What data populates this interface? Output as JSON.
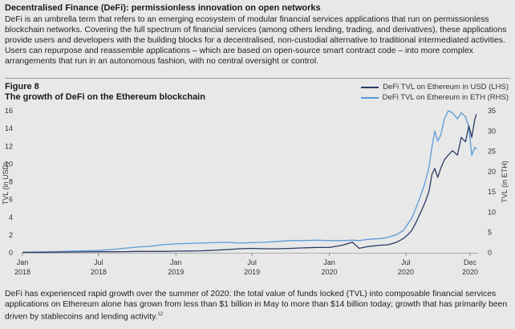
{
  "box": {
    "title": "Decentralised Finance (DeFi): permissionless innovation on open networks",
    "intro": "DeFi is an umbrella term that refers to an emerging ecosystem of modular financial services applications that run on permissionless blockchain networks. Covering the full spectrum of financial services (among others lending, trading, and derivatives), these applications provide users and developers with the building blocks for a decentralised, non-custodial alternative to traditional intermediated activities. Users can repurpose and reassemble applications – which are based on open-source smart contract code – into more complex arrangements that run in an autonomous fashion, with no central oversight or control.",
    "outro": "DeFi has experienced rapid growth over the summer of 2020: the total value of funds locked (TVL) into composable financial services applications on Ethereum alone has grown from less than $1 billion in May to more than $14 billion today; growth that has primarily been driven by stablecoins and lending activity.",
    "footnote": "12"
  },
  "figure": {
    "label": "Figure 8",
    "title": "The growth of DeFi on the Ethereum blockchain"
  },
  "chart_data": {
    "type": "line",
    "ylabel_left": "TVL (in USD)",
    "ylabel_right": "TVL (in ETH)",
    "ylim_left": [
      0,
      16
    ],
    "ylim_right": [
      0,
      35
    ],
    "yticks_left": [
      0,
      2,
      4,
      6,
      8,
      10,
      12,
      14,
      16
    ],
    "yticks_right": [
      0,
      5,
      10,
      15,
      20,
      25,
      30,
      35
    ],
    "xlim": [
      "2018-01-01",
      "2020-12-20"
    ],
    "xticks": [
      {
        "date": "2018-01-01",
        "line1": "Jan",
        "line2": "2018"
      },
      {
        "date": "2018-07-01",
        "line1": "Jul",
        "line2": "2018"
      },
      {
        "date": "2019-01-01",
        "line1": "Jan",
        "line2": "2019"
      },
      {
        "date": "2019-07-01",
        "line1": "Jul",
        "line2": "2019"
      },
      {
        "date": "2020-01-01",
        "line1": "Jan",
        "line2": "2020"
      },
      {
        "date": "2020-07-01",
        "line1": "Jul",
        "line2": "2020"
      },
      {
        "date": "2020-12-01",
        "line1": "Dec",
        "line2": "2020"
      }
    ],
    "grid": false,
    "legend_position": "top-right",
    "series": [
      {
        "name": "DeFi TVL on Ethereum in USD (LHS)",
        "axis": "left",
        "color": "#2b3a67",
        "x": [
          "2018-01-01",
          "2018-02-01",
          "2018-03-01",
          "2018-04-01",
          "2018-05-01",
          "2018-06-01",
          "2018-07-01",
          "2018-08-01",
          "2018-09-01",
          "2018-10-01",
          "2018-11-01",
          "2018-12-01",
          "2019-01-01",
          "2019-02-01",
          "2019-03-01",
          "2019-04-01",
          "2019-05-01",
          "2019-06-01",
          "2019-07-01",
          "2019-08-01",
          "2019-09-01",
          "2019-10-01",
          "2019-11-01",
          "2019-12-01",
          "2020-01-01",
          "2020-02-01",
          "2020-02-25",
          "2020-03-12",
          "2020-04-01",
          "2020-05-01",
          "2020-05-20",
          "2020-06-10",
          "2020-06-25",
          "2020-07-05",
          "2020-07-15",
          "2020-07-25",
          "2020-08-05",
          "2020-08-15",
          "2020-08-25",
          "2020-09-01",
          "2020-09-08",
          "2020-09-15",
          "2020-09-22",
          "2020-10-01",
          "2020-10-10",
          "2020-10-20",
          "2020-11-01",
          "2020-11-10",
          "2020-11-20",
          "2020-11-28",
          "2020-12-05",
          "2020-12-12",
          "2020-12-16"
        ],
        "values": [
          0.05,
          0.05,
          0.06,
          0.08,
          0.09,
          0.1,
          0.12,
          0.12,
          0.13,
          0.15,
          0.15,
          0.15,
          0.18,
          0.2,
          0.22,
          0.28,
          0.35,
          0.45,
          0.5,
          0.45,
          0.45,
          0.5,
          0.55,
          0.6,
          0.6,
          0.85,
          1.2,
          0.5,
          0.7,
          0.85,
          0.9,
          1.2,
          1.6,
          2.0,
          2.5,
          3.4,
          4.5,
          5.6,
          6.9,
          8.8,
          9.5,
          8.5,
          9.5,
          10.5,
          11.0,
          11.5,
          11.0,
          13.0,
          12.5,
          14.3,
          13.0,
          15.0,
          15.6
        ]
      },
      {
        "name": "DeFi TVL on Ethereum in ETH (RHS)",
        "axis": "right",
        "color": "#5a9bd8",
        "x": [
          "2018-01-01",
          "2018-02-01",
          "2018-03-01",
          "2018-04-01",
          "2018-05-01",
          "2018-06-01",
          "2018-07-01",
          "2018-08-01",
          "2018-09-01",
          "2018-10-01",
          "2018-11-01",
          "2018-12-01",
          "2019-01-01",
          "2019-02-01",
          "2019-03-01",
          "2019-04-01",
          "2019-05-01",
          "2019-06-01",
          "2019-07-01",
          "2019-08-01",
          "2019-09-01",
          "2019-10-01",
          "2019-11-01",
          "2019-12-01",
          "2020-01-01",
          "2020-02-01",
          "2020-02-25",
          "2020-03-12",
          "2020-04-01",
          "2020-05-01",
          "2020-05-20",
          "2020-06-10",
          "2020-06-25",
          "2020-07-05",
          "2020-07-15",
          "2020-07-25",
          "2020-08-05",
          "2020-08-15",
          "2020-08-25",
          "2020-09-01",
          "2020-09-08",
          "2020-09-15",
          "2020-09-22",
          "2020-10-01",
          "2020-10-10",
          "2020-10-20",
          "2020-11-01",
          "2020-11-10",
          "2020-11-20",
          "2020-11-28",
          "2020-12-05",
          "2020-12-12",
          "2020-12-16"
        ],
        "values": [
          0.1,
          0.15,
          0.2,
          0.3,
          0.4,
          0.5,
          0.6,
          0.8,
          1.1,
          1.4,
          1.6,
          2.0,
          2.2,
          2.3,
          2.4,
          2.5,
          2.6,
          2.4,
          2.5,
          2.6,
          2.8,
          3.0,
          3.0,
          3.1,
          3.0,
          3.0,
          3.1,
          3.0,
          3.3,
          3.5,
          3.8,
          4.5,
          5.5,
          7.0,
          8.5,
          11.0,
          14.0,
          17.0,
          21.0,
          26.0,
          30.0,
          27.5,
          29.0,
          33.0,
          35.0,
          34.5,
          33.0,
          34.5,
          33.5,
          31.0,
          24.0,
          26.0,
          25.5
        ]
      }
    ]
  }
}
